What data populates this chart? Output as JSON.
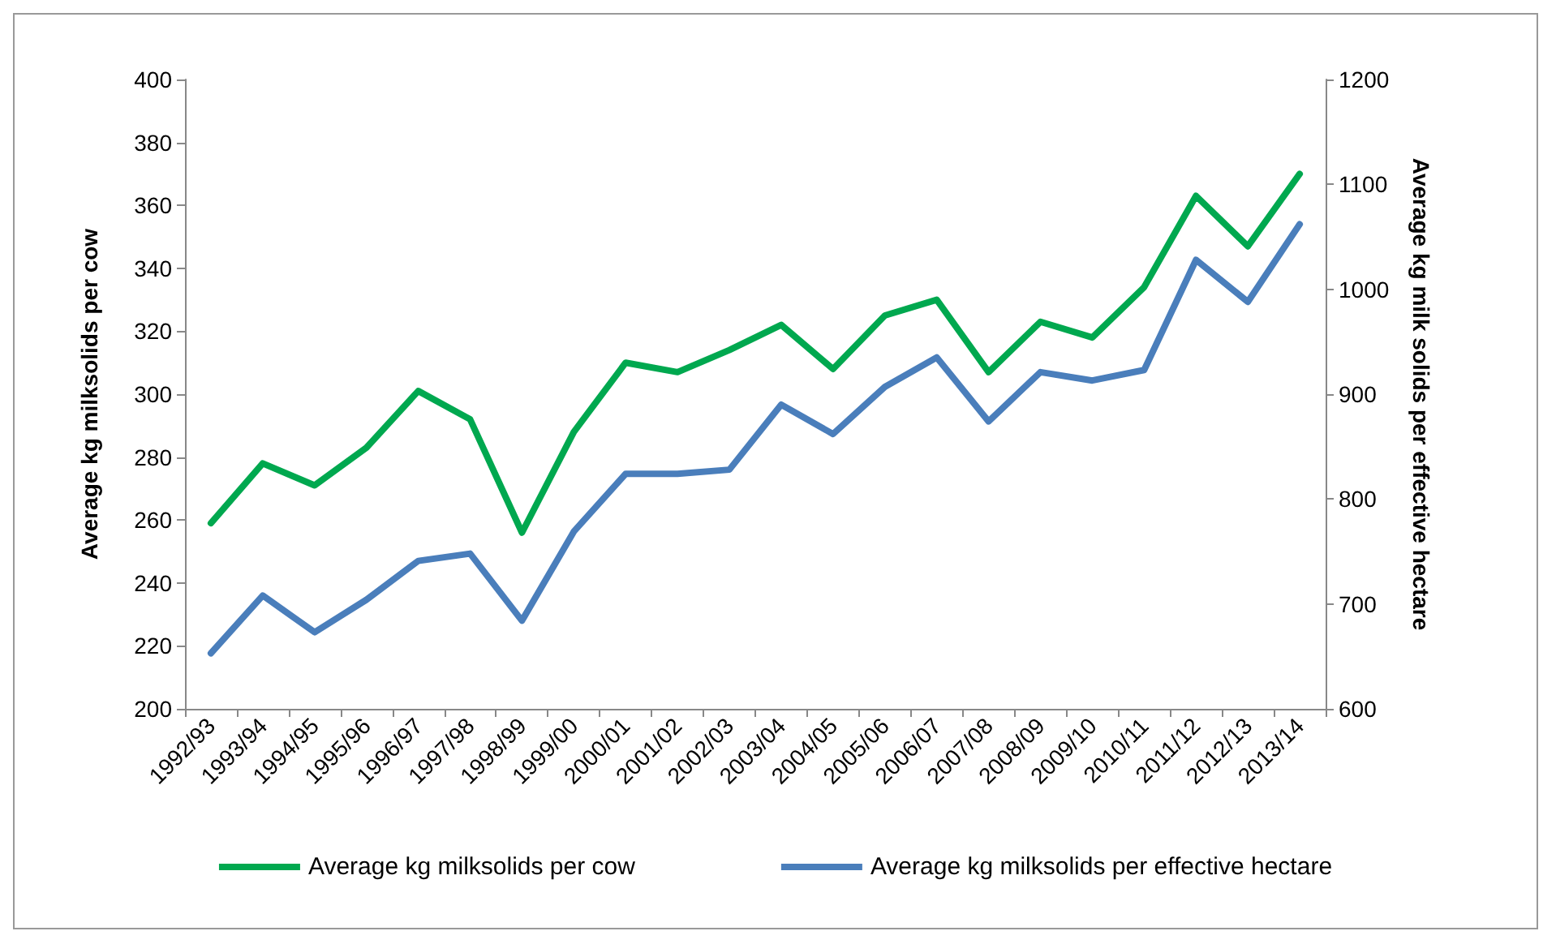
{
  "chart_data": {
    "type": "line",
    "ylabel": "Average kg milksolids per cow",
    "y2label": "Average kg milk solids per effective hectare",
    "categories": [
      "1992/93",
      "1993/94",
      "1994/95",
      "1995/96",
      "1996/97",
      "1997/98",
      "1998/99",
      "1999/00",
      "2000/01",
      "2001/02",
      "2002/03",
      "2003/04",
      "2004/05",
      "2005/06",
      "2006/07",
      "2007/08",
      "2008/09",
      "2009/10",
      "2010/11",
      "2011/12",
      "2012/13",
      "2013/14"
    ],
    "series": [
      {
        "name": "Average kg milksolids per cow",
        "color": "#00a84f",
        "values": [
          259,
          278,
          271,
          283,
          301,
          292,
          256,
          288,
          310,
          307,
          314,
          322,
          308,
          325,
          330,
          307,
          323,
          318,
          334,
          363,
          347,
          370
        ]
      },
      {
        "name": "Average kg milksolids per effective hectare",
        "color": "#4a7ebb",
        "axis": "y2",
        "values": [
          653,
          708,
          673,
          704,
          741,
          748,
          684,
          769,
          824,
          824,
          828,
          890,
          862,
          907,
          935,
          874,
          921,
          913,
          923,
          1028,
          988,
          1062
        ]
      }
    ],
    "ylim": [
      200,
      400
    ],
    "yticks": [
      200,
      220,
      240,
      260,
      280,
      300,
      320,
      340,
      360,
      380,
      400
    ],
    "y2lim": [
      600,
      1200
    ],
    "y2ticks": [
      600,
      700,
      800,
      900,
      1000,
      1100,
      1200
    ],
    "grid": false,
    "legend": "bottom",
    "marker": "none",
    "line_style": "solid"
  }
}
